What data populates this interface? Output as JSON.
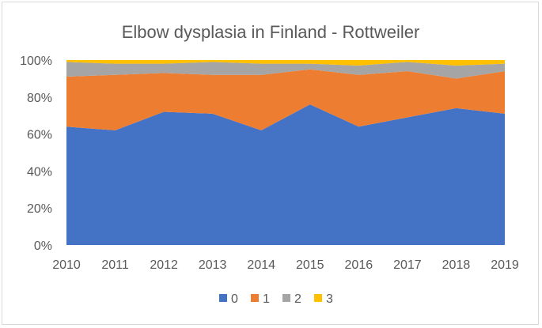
{
  "chart_data": {
    "type": "area",
    "stacked": "percent",
    "title": "Elbow dysplasia in Finland - Rottweiler",
    "categories": [
      "2010",
      "2011",
      "2012",
      "2013",
      "2014",
      "2015",
      "2016",
      "2017",
      "2018",
      "2019"
    ],
    "series": [
      {
        "name": "0",
        "color": "#4472c4",
        "values": [
          64,
          62,
          72,
          71,
          62,
          76,
          64,
          69,
          74,
          71
        ]
      },
      {
        "name": "1",
        "color": "#ed7d31",
        "values": [
          27,
          30,
          21,
          21,
          30,
          19,
          28,
          25,
          16,
          23
        ]
      },
      {
        "name": "2",
        "color": "#a5a5a5",
        "values": [
          8,
          6,
          5,
          7,
          6,
          3,
          5,
          5,
          7,
          4
        ]
      },
      {
        "name": "3",
        "color": "#ffc000",
        "values": [
          1,
          2,
          2,
          1,
          2,
          2,
          3,
          1,
          3,
          2
        ]
      }
    ],
    "yticks": [
      "0%",
      "20%",
      "40%",
      "60%",
      "80%",
      "100%"
    ],
    "ylim": [
      0,
      100
    ],
    "grid": false,
    "legend": "bottom"
  }
}
